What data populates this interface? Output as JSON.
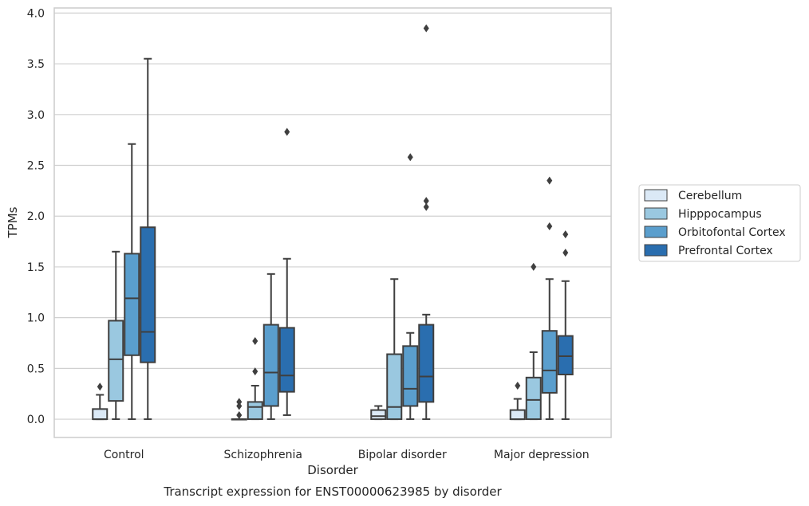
{
  "chart_data": {
    "type": "box",
    "title": "",
    "caption": "Transcript expression for ENST00000623985 by disorder",
    "xlabel": "Disorder",
    "ylabel": "TPMs",
    "ylim": [
      -0.18,
      4.05
    ],
    "yticks": [
      "0.0",
      "0.5",
      "1.0",
      "1.5",
      "2.0",
      "2.5",
      "3.0",
      "3.5",
      "4.0"
    ],
    "grid": true,
    "legend_position": "right",
    "categories": [
      "Control",
      "Schizophrenia",
      "Bipolar disorder",
      "Major depression"
    ],
    "series": [
      {
        "name": "Cerebellum",
        "color": "#dbe9f6",
        "boxes": [
          {
            "min": 0.0,
            "q1": 0.0,
            "median": 0.0,
            "q3": 0.1,
            "max": 0.24,
            "outliers": [
              0.32
            ]
          },
          {
            "min": 0.0,
            "q1": 0.0,
            "median": 0.0,
            "q3": 0.0,
            "max": 0.0,
            "outliers": [
              0.17,
              0.13,
              0.04
            ]
          },
          {
            "min": 0.0,
            "q1": 0.0,
            "median": 0.03,
            "q3": 0.09,
            "max": 0.13,
            "outliers": []
          },
          {
            "min": 0.0,
            "q1": 0.0,
            "median": 0.0,
            "q3": 0.09,
            "max": 0.2,
            "outliers": [
              0.33
            ]
          }
        ]
      },
      {
        "name": "Hipppocampus",
        "color": "#9ac8e0",
        "boxes": [
          {
            "min": 0.0,
            "q1": 0.18,
            "median": 0.59,
            "q3": 0.97,
            "max": 1.65,
            "outliers": []
          },
          {
            "min": 0.0,
            "q1": 0.0,
            "median": 0.12,
            "q3": 0.17,
            "max": 0.33,
            "outliers": [
              0.77,
              0.47
            ]
          },
          {
            "min": 0.0,
            "q1": 0.0,
            "median": 0.12,
            "q3": 0.64,
            "max": 1.38,
            "outliers": []
          },
          {
            "min": 0.0,
            "q1": 0.0,
            "median": 0.19,
            "q3": 0.41,
            "max": 0.66,
            "outliers": [
              1.5
            ]
          }
        ]
      },
      {
        "name": "Orbitofontal Cortex",
        "color": "#5a9ecd",
        "boxes": [
          {
            "min": 0.0,
            "q1": 0.63,
            "median": 1.19,
            "q3": 1.63,
            "max": 2.71,
            "outliers": []
          },
          {
            "min": 0.0,
            "q1": 0.13,
            "median": 0.46,
            "q3": 0.93,
            "max": 1.43,
            "outliers": []
          },
          {
            "min": 0.0,
            "q1": 0.13,
            "median": 0.3,
            "q3": 0.72,
            "max": 0.85,
            "outliers": [
              2.58
            ]
          },
          {
            "min": 0.0,
            "q1": 0.26,
            "median": 0.48,
            "q3": 0.87,
            "max": 1.38,
            "outliers": [
              2.35,
              1.9
            ]
          }
        ]
      },
      {
        "name": "Prefrontal Cortex",
        "color": "#2a6eaf",
        "boxes": [
          {
            "min": 0.0,
            "q1": 0.56,
            "median": 0.86,
            "q3": 1.89,
            "max": 3.55,
            "outliers": []
          },
          {
            "min": 0.04,
            "q1": 0.27,
            "median": 0.43,
            "q3": 0.9,
            "max": 1.58,
            "outliers": [
              2.83
            ]
          },
          {
            "min": 0.0,
            "q1": 0.17,
            "median": 0.42,
            "q3": 0.93,
            "max": 1.03,
            "outliers": [
              3.85,
              2.15,
              2.09
            ]
          },
          {
            "min": 0.0,
            "q1": 0.44,
            "median": 0.62,
            "q3": 0.82,
            "max": 1.36,
            "outliers": [
              1.82,
              1.64
            ]
          }
        ]
      }
    ]
  }
}
